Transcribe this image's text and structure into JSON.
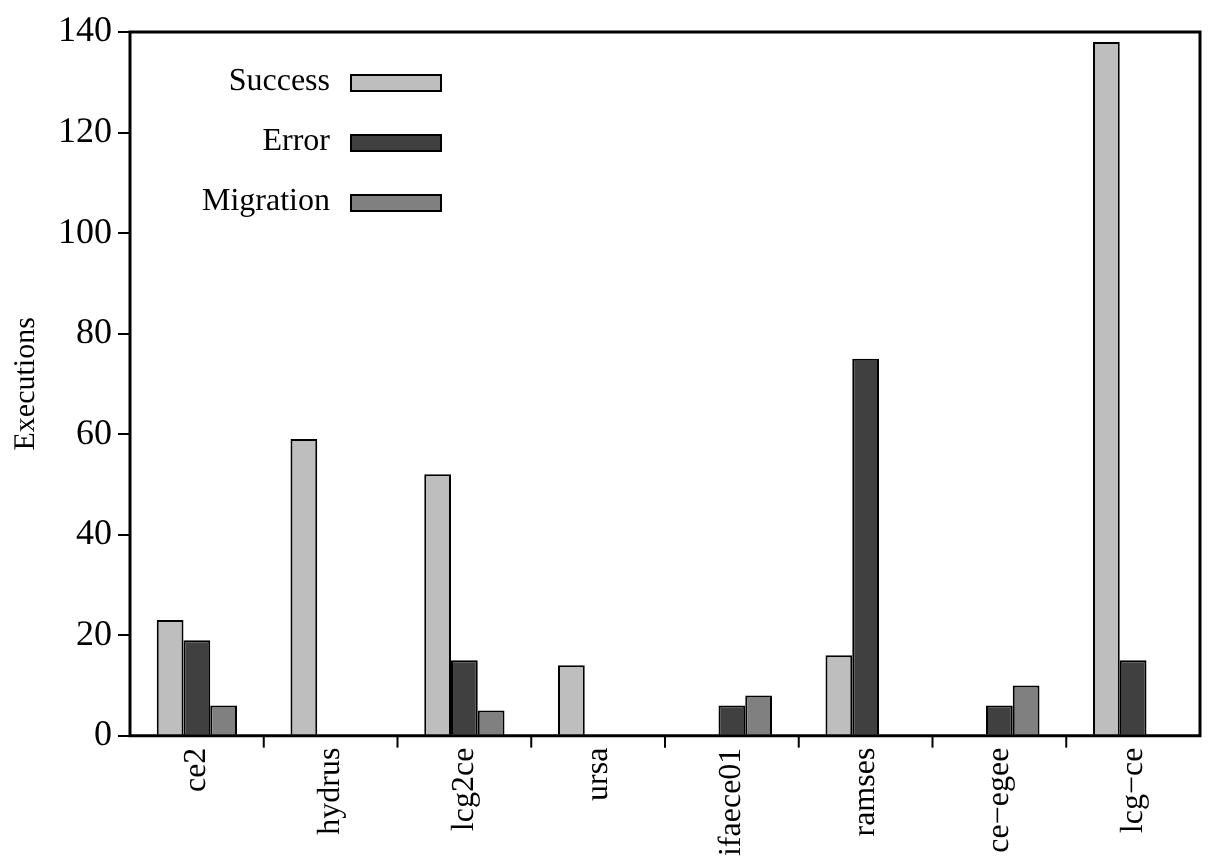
{
  "chart_data": {
    "type": "bar",
    "ylabel": "Executions",
    "categories": [
      "ce2",
      "hydrus",
      "lcg2ce",
      "ursa",
      "ifaece01",
      "ramses",
      "ce−egee",
      "lcg−ce"
    ],
    "series": [
      {
        "name": "Success",
        "color": "#bebebe",
        "values": [
          23,
          59,
          52,
          14,
          0,
          16,
          0,
          138
        ]
      },
      {
        "name": "Error",
        "color": "#404040",
        "values": [
          19,
          0,
          15,
          0,
          6,
          75,
          6,
          15
        ]
      },
      {
        "name": "Migration",
        "color": "#808080",
        "values": [
          6,
          0,
          5,
          0,
          8,
          0,
          10,
          0
        ]
      }
    ],
    "ylim": [
      0,
      140
    ],
    "yticks": [
      0,
      20,
      40,
      60,
      80,
      100,
      120,
      140
    ],
    "grid": false,
    "legend": "top left"
  }
}
